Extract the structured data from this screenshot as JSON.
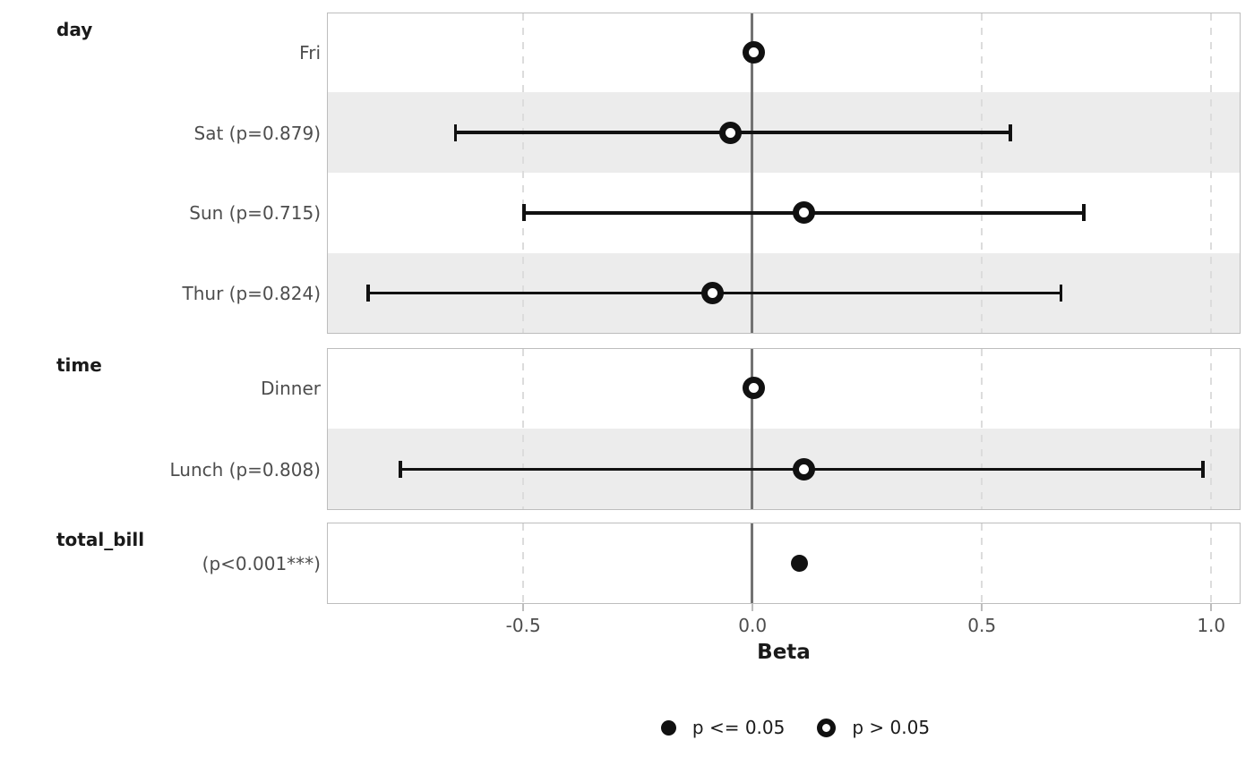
{
  "chart_data": {
    "type": "scatter",
    "subtype": "forest-coefficient-plot",
    "title": "",
    "xlabel": "Beta",
    "axis": {
      "min": -0.928,
      "max": 1.064,
      "tick_values": [
        -0.5,
        0.0,
        0.5,
        1.0
      ],
      "tick_labels": [
        "-0.5",
        "0.0",
        "0.5",
        "1.0"
      ],
      "zero_line": 0.0,
      "grid": "vertical-dashed",
      "legend_position": "bottom"
    },
    "groups": [
      {
        "label": "day",
        "rows": [
          {
            "label": "Fri",
            "estimate": 0.0,
            "ci_low": null,
            "ci_high": null,
            "p_value": null,
            "significant": false,
            "reference": true
          },
          {
            "label": "Sat (p=0.879)",
            "estimate": -0.05,
            "ci_low": -0.65,
            "ci_high": 0.56,
            "p_value": 0.879,
            "significant": false,
            "reference": false
          },
          {
            "label": "Sun (p=0.715)",
            "estimate": 0.11,
            "ci_low": -0.5,
            "ci_high": 0.72,
            "p_value": 0.715,
            "significant": false,
            "reference": false
          },
          {
            "label": "Thur (p=0.824)",
            "estimate": -0.09,
            "ci_low": -0.84,
            "ci_high": 0.67,
            "p_value": 0.824,
            "significant": false,
            "reference": false
          }
        ]
      },
      {
        "label": "time",
        "rows": [
          {
            "label": "Dinner",
            "estimate": 0.0,
            "ci_low": null,
            "ci_high": null,
            "p_value": null,
            "significant": false,
            "reference": true
          },
          {
            "label": "Lunch (p=0.808)",
            "estimate": 0.11,
            "ci_low": -0.77,
            "ci_high": 0.98,
            "p_value": 0.808,
            "significant": false,
            "reference": false
          }
        ]
      },
      {
        "label": "total_bill",
        "rows": [
          {
            "label": "(p<0.001***)",
            "estimate": 0.1,
            "ci_low": null,
            "ci_high": null,
            "p_value": "<0.001",
            "significant": true,
            "reference": false
          }
        ]
      }
    ],
    "legend": [
      {
        "label": "p <= 0.05",
        "marker": "filled-circle"
      },
      {
        "label": "p > 0.05",
        "marker": "open-circle"
      }
    ],
    "colors": {
      "marker": "#111111",
      "stripe": "#ececec",
      "panel_border": "#bdbdbd",
      "gridline": "#dcdcdc",
      "zero_line": "#737373",
      "row_label_text": "#4d4d4d",
      "header_text": "#1a1a1a"
    }
  }
}
